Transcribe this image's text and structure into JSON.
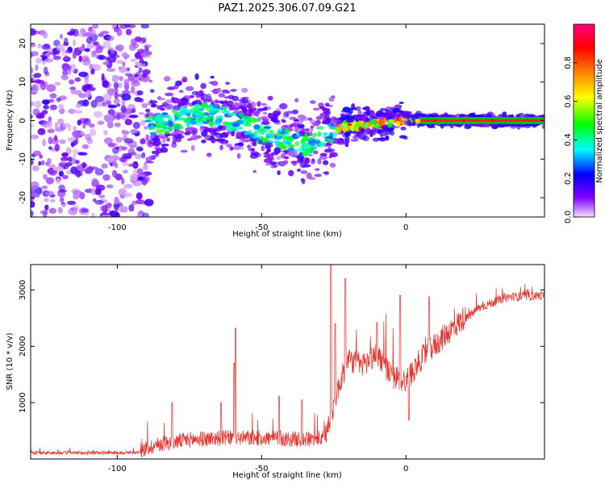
{
  "title": "PAZ1.2025.306.07.09.G21",
  "chart_data": [
    {
      "type": "heatmap",
      "xlabel": "Height of straight line (km)",
      "ylabel": "Frequency (Hz)",
      "xlim": [
        -130,
        48
      ],
      "ylim": [
        -25,
        25
      ],
      "xticks": [
        -100,
        -50,
        0
      ],
      "yticks": [
        -20,
        -10,
        0,
        10,
        20
      ],
      "xtick_labels": [
        "-100",
        "-50",
        "0"
      ],
      "ytick_labels": [
        "-20",
        "-10",
        "0",
        "10",
        "20"
      ],
      "colorbar": {
        "label": "Normalized spectral amplitude",
        "range": [
          0,
          1
        ],
        "ticks": [
          0.0,
          0.2,
          0.4,
          0.6,
          0.8
        ],
        "tick_labels": [
          "0.0",
          "0.2",
          "0.4",
          "0.6",
          "0.8"
        ],
        "colors": [
          "#f0e0ff",
          "#8000ff",
          "#0000ff",
          "#00ffff",
          "#00ff00",
          "#ffff00",
          "#ff8000",
          "#ff0000",
          "#ff0080"
        ]
      },
      "ridge": [
        {
          "x": -88,
          "y": -1.5
        },
        {
          "x": -80,
          "y": 0
        },
        {
          "x": -72,
          "y": 1.5
        },
        {
          "x": -64,
          "y": 1
        },
        {
          "x": -56,
          "y": -1
        },
        {
          "x": -48,
          "y": -3.5
        },
        {
          "x": -40,
          "y": -5.5
        },
        {
          "x": -34,
          "y": -6.5
        },
        {
          "x": -28,
          "y": -3.5
        },
        {
          "x": -22,
          "y": -1.5
        },
        {
          "x": -14,
          "y": -1.2
        },
        {
          "x": -6,
          "y": -0.5
        },
        {
          "x": 0,
          "y": 0.2
        },
        {
          "x": 10,
          "y": 0
        },
        {
          "x": 20,
          "y": 0
        },
        {
          "x": 30,
          "y": 0
        },
        {
          "x": 48,
          "y": 0
        }
      ]
    },
    {
      "type": "line",
      "xlabel": "Height of straight line (km)",
      "ylabel": "SNR (10 * v/v)",
      "xlim": [
        -130,
        48
      ],
      "ylim": [
        0,
        3450
      ],
      "xticks": [
        -100,
        -50,
        0
      ],
      "yticks": [
        1000,
        2000,
        3000
      ],
      "xtick_labels": [
        "-100",
        "-50",
        "0"
      ],
      "ytick_labels": [
        "1000",
        "2000",
        "3000"
      ],
      "line_color": "#e8302a",
      "baseline": [
        {
          "x": -130,
          "y": 100
        },
        {
          "x": -100,
          "y": 100
        },
        {
          "x": -92,
          "y": 110
        },
        {
          "x": -85,
          "y": 230
        },
        {
          "x": -75,
          "y": 300
        },
        {
          "x": -65,
          "y": 330
        },
        {
          "x": -55,
          "y": 330
        },
        {
          "x": -45,
          "y": 320
        },
        {
          "x": -35,
          "y": 300
        },
        {
          "x": -28,
          "y": 330
        },
        {
          "x": -24,
          "y": 1100
        },
        {
          "x": -20,
          "y": 1700
        },
        {
          "x": -15,
          "y": 1600
        },
        {
          "x": -10,
          "y": 1800
        },
        {
          "x": -5,
          "y": 1400
        },
        {
          "x": 0,
          "y": 1300
        },
        {
          "x": 5,
          "y": 1700
        },
        {
          "x": 15,
          "y": 2200
        },
        {
          "x": 25,
          "y": 2650
        },
        {
          "x": 35,
          "y": 2850
        },
        {
          "x": 48,
          "y": 2880
        }
      ],
      "spikes": [
        {
          "x": -59,
          "y": 2320
        },
        {
          "x": -59.5,
          "y": 1700
        },
        {
          "x": -81,
          "y": 1000
        },
        {
          "x": -64,
          "y": 1000
        },
        {
          "x": -44,
          "y": 1120
        },
        {
          "x": -36,
          "y": 1050
        },
        {
          "x": -26,
          "y": 3450
        },
        {
          "x": -24.5,
          "y": 2400
        },
        {
          "x": -21,
          "y": 3200
        },
        {
          "x": -2,
          "y": 2900
        },
        {
          "x": -10,
          "y": 2420
        },
        {
          "x": 8,
          "y": 2880
        },
        {
          "x": 1,
          "y": 690
        }
      ]
    }
  ]
}
